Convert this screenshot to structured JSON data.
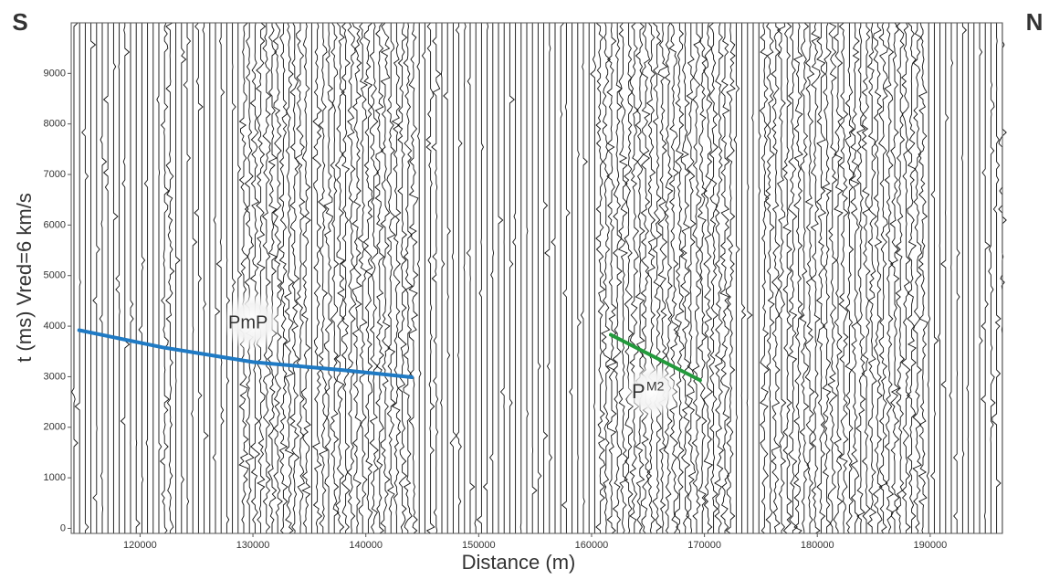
{
  "chart_data": {
    "type": "line",
    "left_label": "S",
    "right_label": "N",
    "xlabel": "Distance (m)",
    "ylabel": "t (ms) Vred=6 km/s",
    "annotations": [
      "PmP",
      "P",
      "M2"
    ],
    "series": [
      {
        "color": "#1f7ac4",
        "x": [
          114600,
          122000,
          130000,
          138000,
          144080
        ],
        "values": [
          3920,
          3580,
          3290,
          3130,
          2990
        ]
      },
      {
        "color": "#239a3c",
        "x": [
          161700,
          169620
        ],
        "values": [
          3830,
          2930
        ]
      }
    ],
    "xlim": [
      113900,
      196400
    ],
    "xticks": [
      120000,
      130000,
      140000,
      150000,
      160000,
      170000,
      180000,
      190000
    ],
    "ylim": [
      -100,
      10000
    ],
    "yticks": [
      0,
      1000,
      2000,
      3000,
      4000,
      5000,
      6000,
      7000,
      8000,
      9000
    ]
  }
}
